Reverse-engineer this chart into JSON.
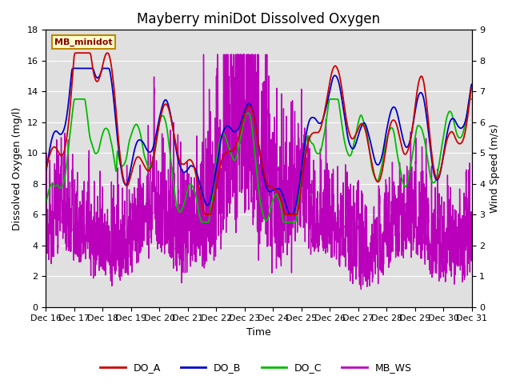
{
  "title": "Mayberry miniDot Dissolved Oxygen",
  "xlabel": "Time",
  "ylabel_left": "Dissolved Oxygen (mg/l)",
  "ylabel_right": "Wind Speed (m/s)",
  "ylim_left": [
    0,
    18
  ],
  "ylim_right": [
    0.0,
    9.0
  ],
  "yticks_left": [
    0,
    2,
    4,
    6,
    8,
    10,
    12,
    14,
    16,
    18
  ],
  "yticks_right": [
    0.0,
    1.0,
    2.0,
    3.0,
    4.0,
    5.0,
    6.0,
    7.0,
    8.0,
    9.0
  ],
  "xtick_labels": [
    "Dec 16",
    "Dec 17",
    "Dec 18",
    "Dec 19",
    "Dec 20",
    "Dec 21",
    "Dec 22",
    "Dec 23",
    "Dec 24",
    "Dec 25",
    "Dec 26",
    "Dec 27",
    "Dec 28",
    "Dec 29",
    "Dec 30",
    "Dec 31"
  ],
  "annotation_text": "MB_minidot",
  "annotation_bg": "#ffffcc",
  "annotation_border": "#bb8800",
  "annotation_text_color": "#880000",
  "line_colors": {
    "DO_A": "#cc0000",
    "DO_B": "#0000cc",
    "DO_C": "#00bb00",
    "MB_WS": "#bb00bb"
  },
  "line_widths": {
    "DO_A": 1.3,
    "DO_B": 1.3,
    "DO_C": 1.3,
    "MB_WS": 1.0
  },
  "legend_entries": [
    "DO_A",
    "DO_B",
    "DO_C",
    "MB_WS"
  ],
  "background_color": "#ffffff",
  "plot_bg_color": "#e0e0e0",
  "grid_color": "#ffffff",
  "title_fontsize": 12,
  "axis_fontsize": 9,
  "tick_fontsize": 8
}
